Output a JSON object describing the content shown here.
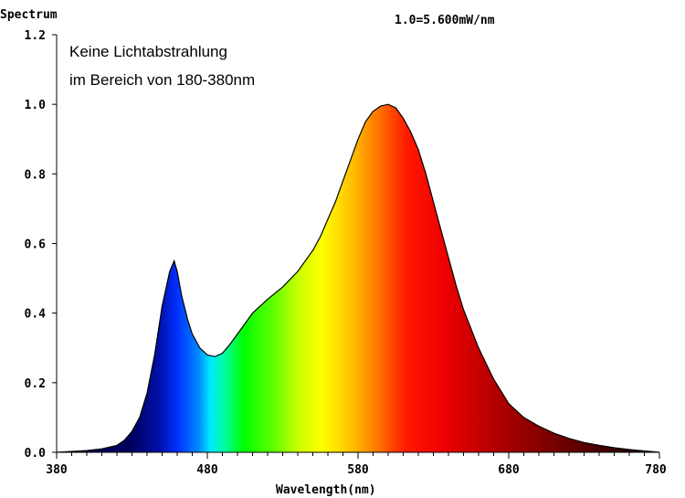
{
  "chart_data": {
    "type": "area",
    "ylabel": "Spectrum",
    "xlabel": "Wavelength(nm)",
    "scale_note": "1.0=5.600mW/nm",
    "annotation_lines": [
      "Keine Lichtabstrahlung",
      "im Bereich von 180-380nm"
    ],
    "xlim": [
      380,
      780
    ],
    "ylim": [
      0,
      1.2
    ],
    "x_ticks": [
      380,
      480,
      580,
      680,
      780
    ],
    "x_tick_labels": [
      "380",
      "480",
      "580",
      "680",
      "780"
    ],
    "y_ticks": [
      0,
      0.2,
      0.4,
      0.6,
      0.8,
      1.0,
      1.2
    ],
    "y_tick_labels": [
      "0.0",
      "0.2",
      "0.4",
      "0.6",
      "0.8",
      "1.0",
      "1.2"
    ],
    "grid": false,
    "legend": "none",
    "series": [
      {
        "x": [
          380,
          400,
          410,
          420,
          425,
          430,
          435,
          440,
          445,
          450,
          455,
          458,
          460,
          463,
          467,
          470,
          475,
          480,
          485,
          490,
          495,
          500,
          505,
          510,
          515,
          520,
          530,
          540,
          550,
          555,
          560,
          565,
          570,
          575,
          580,
          585,
          590,
          595,
          600,
          605,
          610,
          615,
          620,
          625,
          630,
          635,
          640,
          645,
          650,
          660,
          670,
          680,
          690,
          700,
          710,
          720,
          730,
          740,
          750,
          760,
          770,
          780
        ],
        "values": [
          0.0,
          0.005,
          0.01,
          0.02,
          0.035,
          0.06,
          0.1,
          0.17,
          0.28,
          0.42,
          0.52,
          0.55,
          0.52,
          0.45,
          0.38,
          0.34,
          0.3,
          0.28,
          0.275,
          0.285,
          0.31,
          0.34,
          0.37,
          0.4,
          0.42,
          0.44,
          0.475,
          0.52,
          0.58,
          0.62,
          0.67,
          0.72,
          0.78,
          0.84,
          0.9,
          0.95,
          0.98,
          0.995,
          1.0,
          0.99,
          0.96,
          0.92,
          0.87,
          0.8,
          0.72,
          0.64,
          0.56,
          0.48,
          0.41,
          0.3,
          0.21,
          0.14,
          0.1,
          0.075,
          0.055,
          0.04,
          0.028,
          0.02,
          0.013,
          0.008,
          0.004,
          0.0
        ]
      }
    ]
  }
}
